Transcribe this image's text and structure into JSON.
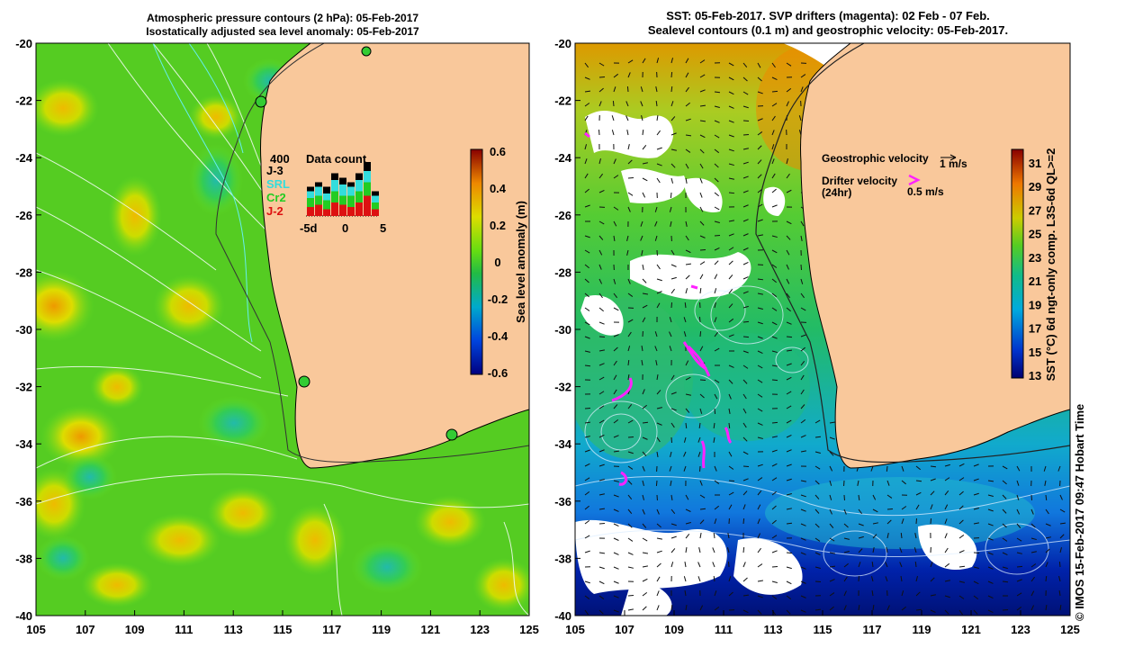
{
  "left_panel": {
    "title_line1": "Atmospheric pressure contours (2 hPa): 05-Feb-2017",
    "title_line2": "Isostatically adjusted sea level anomaly: 05-Feb-2017",
    "y_ticks": [
      "-20",
      "-22",
      "-24",
      "-26",
      "-28",
      "-30",
      "-32",
      "-34",
      "-36",
      "-38",
      "-40"
    ],
    "x_ticks": [
      "105",
      "107",
      "109",
      "111",
      "113",
      "115",
      "117",
      "119",
      "121",
      "123",
      "125"
    ],
    "colorbar": {
      "label": "Sea level anomaly (m)",
      "ticks": [
        "0.6",
        "0.4",
        "0.2",
        "0",
        "-0.2",
        "-0.4",
        "-0.6"
      ]
    },
    "data_count": {
      "title": "Data count",
      "max_label": "400",
      "x_ticks": [
        "-5d",
        "0",
        "5"
      ],
      "legend": [
        {
          "label": "J-3",
          "color": "#000000"
        },
        {
          "label": "SRL",
          "color": "#33dddd"
        },
        {
          "label": "Cr2",
          "color": "#22cc22"
        },
        {
          "label": "J-2",
          "color": "#dd1111"
        }
      ]
    }
  },
  "right_panel": {
    "title_line1": "SST: 05-Feb-2017. SVP drifters (magenta): 02 Feb - 07 Feb.",
    "title_line2": "Sealevel contours (0.1 m) and geostrophic velocity: 05-Feb-2017.",
    "y_ticks": [
      "-20",
      "-22",
      "-24",
      "-26",
      "-28",
      "-30",
      "-32",
      "-34",
      "-36",
      "-38",
      "-40"
    ],
    "x_ticks": [
      "105",
      "107",
      "109",
      "111",
      "113",
      "115",
      "117",
      "119",
      "121",
      "123",
      "125"
    ],
    "geostrophic_label": "Geostrophic velocity",
    "geostrophic_scale": "1 m/s",
    "drifter_label_1": "Drifter velocity",
    "drifter_label_2": "(24hr)",
    "drifter_scale": "0.5 m/s",
    "colorbar": {
      "label": "SST (°C) 6d ngt-only comp. L3S-6d QL>=2",
      "ticks": [
        "31",
        "29",
        "27",
        "25",
        "23",
        "21",
        "19",
        "17",
        "15",
        "13"
      ]
    }
  },
  "copyright": "© IMOS 15-Feb-2017 09:47 Hobart Time",
  "colors": {
    "land": "#f9c89b",
    "ocean_green": "#66dd22",
    "drifter": "#ff22ff"
  }
}
